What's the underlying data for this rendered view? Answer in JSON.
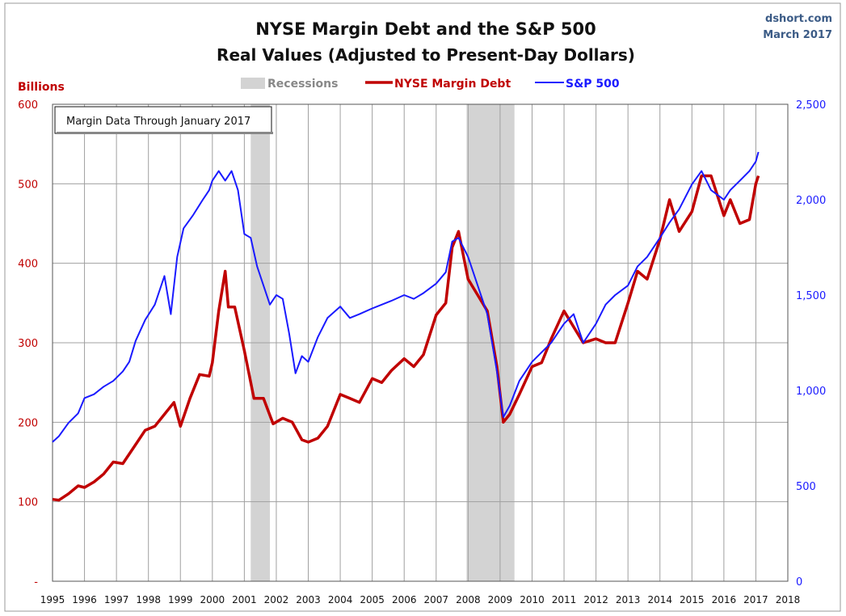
{
  "chart_data": {
    "type": "line",
    "title": "NYSE Margin Debt and the S&P 500",
    "subtitle": "Real Values (Adjusted to Present-Day Dollars)",
    "source": "dshort.com",
    "date": "March 2017",
    "ylabel": "Billions",
    "annotation": "Margin Data Through January 2017",
    "legend": {
      "placement": "top-center",
      "items": [
        "Recessions",
        "NYSE Margin Debt",
        "S&P 500"
      ]
    },
    "xlim": [
      1995,
      2018
    ],
    "x_ticks": [
      "1995",
      "1996",
      "1997",
      "1998",
      "1999",
      "2000",
      "2001",
      "2002",
      "2003",
      "2004",
      "2005",
      "2006",
      "2007",
      "2008",
      "2009",
      "2010",
      "2011",
      "2012",
      "2013",
      "2014",
      "2015",
      "2016",
      "2017",
      "2018"
    ],
    "y_left": {
      "lim": [
        0,
        600
      ],
      "ticks": [
        0,
        100,
        200,
        300,
        400,
        500,
        600
      ],
      "tick_labels": [
        "-",
        "100",
        "200",
        "300",
        "400",
        "500",
        "600"
      ]
    },
    "y_right": {
      "lim": [
        0,
        2500
      ],
      "ticks": [
        0,
        500,
        1000,
        1500,
        2000,
        2500
      ],
      "tick_labels": [
        "0",
        "500",
        "1,000",
        "1,500",
        "2,000",
        "2,500"
      ]
    },
    "grid": true,
    "recessions": [
      [
        2001.2,
        2001.8
      ],
      [
        2007.95,
        2009.45
      ]
    ],
    "colors": {
      "margin": "#c00000",
      "sp500": "#1a1aff",
      "recession": "#d3d3d3",
      "grid": "#a0a0a0"
    },
    "series": [
      {
        "name": "NYSE Margin Debt",
        "axis": "left",
        "x": [
          1995.0,
          1995.2,
          1995.5,
          1995.8,
          1996.0,
          1996.3,
          1996.6,
          1996.9,
          1997.2,
          1997.6,
          1997.9,
          1998.2,
          1998.5,
          1998.8,
          1999.0,
          1999.3,
          1999.6,
          1999.9,
          2000.0,
          2000.2,
          2000.4,
          2000.5,
          2000.7,
          2001.0,
          2001.3,
          2001.6,
          2001.9,
          2002.2,
          2002.5,
          2002.8,
          2003.0,
          2003.3,
          2003.6,
          2004.0,
          2004.3,
          2004.6,
          2005.0,
          2005.3,
          2005.6,
          2006.0,
          2006.3,
          2006.6,
          2007.0,
          2007.3,
          2007.5,
          2007.7,
          2008.0,
          2008.3,
          2008.6,
          2008.9,
          2009.1,
          2009.3,
          2009.6,
          2010.0,
          2010.3,
          2010.6,
          2011.0,
          2011.3,
          2011.6,
          2012.0,
          2012.3,
          2012.6,
          2013.0,
          2013.3,
          2013.6,
          2014.0,
          2014.3,
          2014.6,
          2015.0,
          2015.3,
          2015.6,
          2016.0,
          2016.2,
          2016.5,
          2016.8,
          2017.0,
          2017.08
        ],
        "y": [
          103,
          102,
          110,
          120,
          118,
          125,
          135,
          150,
          148,
          172,
          190,
          195,
          210,
          225,
          195,
          230,
          260,
          258,
          275,
          340,
          390,
          345,
          345,
          290,
          230,
          230,
          198,
          205,
          200,
          178,
          175,
          180,
          195,
          235,
          230,
          225,
          255,
          250,
          265,
          280,
          270,
          285,
          335,
          350,
          420,
          440,
          380,
          360,
          340,
          270,
          200,
          210,
          235,
          270,
          275,
          305,
          340,
          320,
          300,
          305,
          300,
          300,
          350,
          390,
          380,
          430,
          480,
          440,
          465,
          510,
          510,
          460,
          480,
          450,
          455,
          500,
          510
        ]
      },
      {
        "name": "S&P 500",
        "axis": "right",
        "x": [
          1995.0,
          1995.2,
          1995.5,
          1995.8,
          1996.0,
          1996.3,
          1996.6,
          1996.9,
          1997.2,
          1997.4,
          1997.6,
          1997.9,
          1998.2,
          1998.5,
          1998.7,
          1998.9,
          1999.1,
          1999.4,
          1999.7,
          1999.9,
          2000.0,
          2000.2,
          2000.4,
          2000.6,
          2000.8,
          2001.0,
          2001.2,
          2001.4,
          2001.6,
          2001.8,
          2002.0,
          2002.2,
          2002.4,
          2002.6,
          2002.8,
          2003.0,
          2003.3,
          2003.6,
          2004.0,
          2004.3,
          2004.6,
          2005.0,
          2005.3,
          2005.6,
          2006.0,
          2006.3,
          2006.6,
          2007.0,
          2007.3,
          2007.5,
          2007.7,
          2008.0,
          2008.3,
          2008.6,
          2008.9,
          2009.1,
          2009.3,
          2009.6,
          2010.0,
          2010.3,
          2010.6,
          2011.0,
          2011.3,
          2011.6,
          2012.0,
          2012.3,
          2012.6,
          2013.0,
          2013.3,
          2013.6,
          2014.0,
          2014.3,
          2014.6,
          2015.0,
          2015.3,
          2015.6,
          2016.0,
          2016.2,
          2016.5,
          2016.8,
          2017.0,
          2017.08
        ],
        "y": [
          730,
          760,
          830,
          880,
          960,
          980,
          1020,
          1050,
          1100,
          1150,
          1260,
          1370,
          1450,
          1600,
          1400,
          1700,
          1850,
          1920,
          2000,
          2050,
          2100,
          2150,
          2100,
          2150,
          2050,
          1820,
          1800,
          1650,
          1550,
          1450,
          1500,
          1480,
          1300,
          1090,
          1180,
          1150,
          1280,
          1380,
          1440,
          1380,
          1400,
          1430,
          1450,
          1470,
          1500,
          1480,
          1510,
          1560,
          1620,
          1780,
          1800,
          1700,
          1550,
          1400,
          1100,
          860,
          920,
          1050,
          1150,
          1200,
          1250,
          1350,
          1400,
          1250,
          1350,
          1450,
          1500,
          1550,
          1650,
          1700,
          1800,
          1880,
          1950,
          2080,
          2150,
          2050,
          2000,
          2050,
          2100,
          2150,
          2200,
          2250
        ]
      }
    ]
  }
}
